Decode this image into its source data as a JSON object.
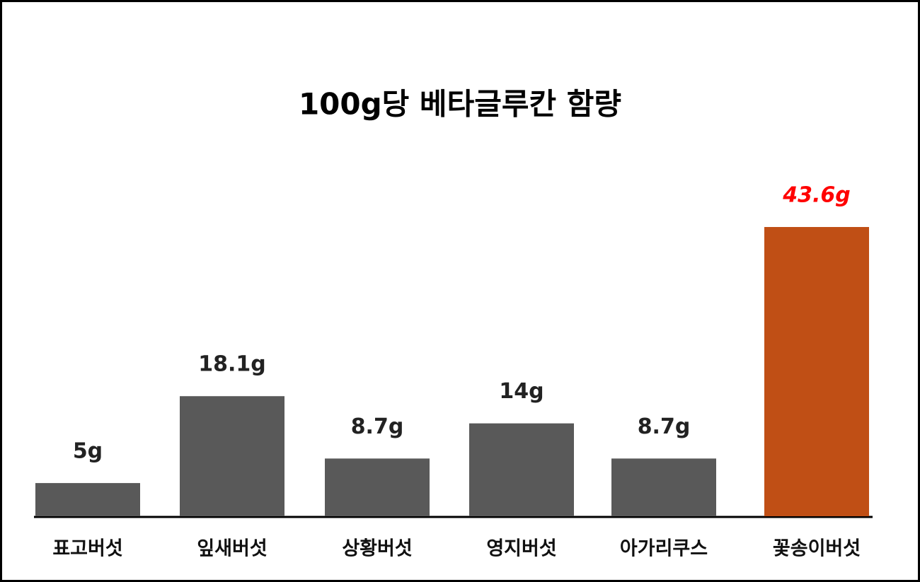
{
  "chart_data": {
    "type": "bar",
    "title": "100g당 베타글루칸 함량",
    "categories": [
      "표고버섯",
      "잎새버섯",
      "상황버섯",
      "영지버섯",
      "아가리쿠스",
      "꽃송이버섯"
    ],
    "values": [
      5,
      18.1,
      8.7,
      14,
      8.7,
      43.6
    ],
    "value_labels": [
      "5g",
      "18.1g",
      "8.7g",
      "14g",
      "8.7g",
      "43.6g"
    ],
    "colors": [
      "#595959",
      "#595959",
      "#595959",
      "#595959",
      "#595959",
      "#c04f15"
    ],
    "value_label_colors": [
      "#222222",
      "#222222",
      "#222222",
      "#222222",
      "#222222",
      "#ff0000"
    ],
    "value_label_styles": [
      "normal",
      "normal",
      "normal",
      "normal",
      "normal",
      "italic"
    ]
  }
}
